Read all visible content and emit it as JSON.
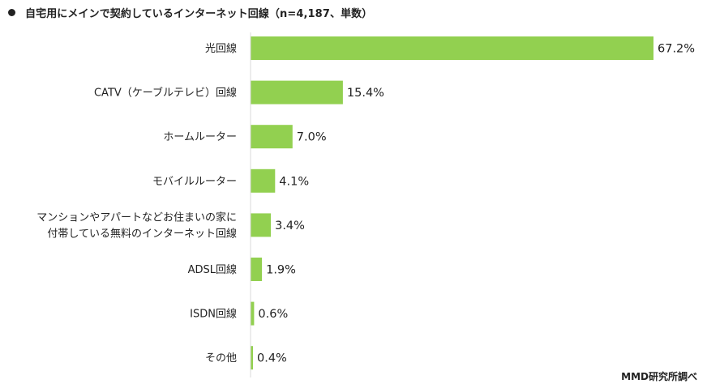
{
  "title": "自宅用にメインで契約しているインターネット回線（n=4,187、単数）",
  "source": "MMD研究所調べ",
  "colors": {
    "bar": "#92d050",
    "axis": "#d9d9d9",
    "text": "#222222"
  },
  "chart_data": {
    "type": "bar",
    "orientation": "horizontal",
    "title": "自宅用にメインで契約しているインターネット回線（n=4,187、単数）",
    "unit": "%",
    "xlim": [
      0,
      67.2
    ],
    "grid": false,
    "legend": "none",
    "categories": [
      [
        "光回線"
      ],
      [
        "CATV（ケーブルテレビ）回線"
      ],
      [
        "ホームルーター"
      ],
      [
        "モバイルルーター"
      ],
      [
        "マンションやアパートなどお住まいの家に",
        "付帯している無料のインターネット回線"
      ],
      [
        "ADSL回線"
      ],
      [
        "ISDN回線"
      ],
      [
        "その他"
      ]
    ],
    "values": [
      67.2,
      15.4,
      7.0,
      4.1,
      3.4,
      1.9,
      0.6,
      0.4
    ],
    "value_labels": [
      "67.2%",
      "15.4%",
      "7.0%",
      "4.1%",
      "3.4%",
      "1.9%",
      "0.6%",
      "0.4%"
    ]
  }
}
